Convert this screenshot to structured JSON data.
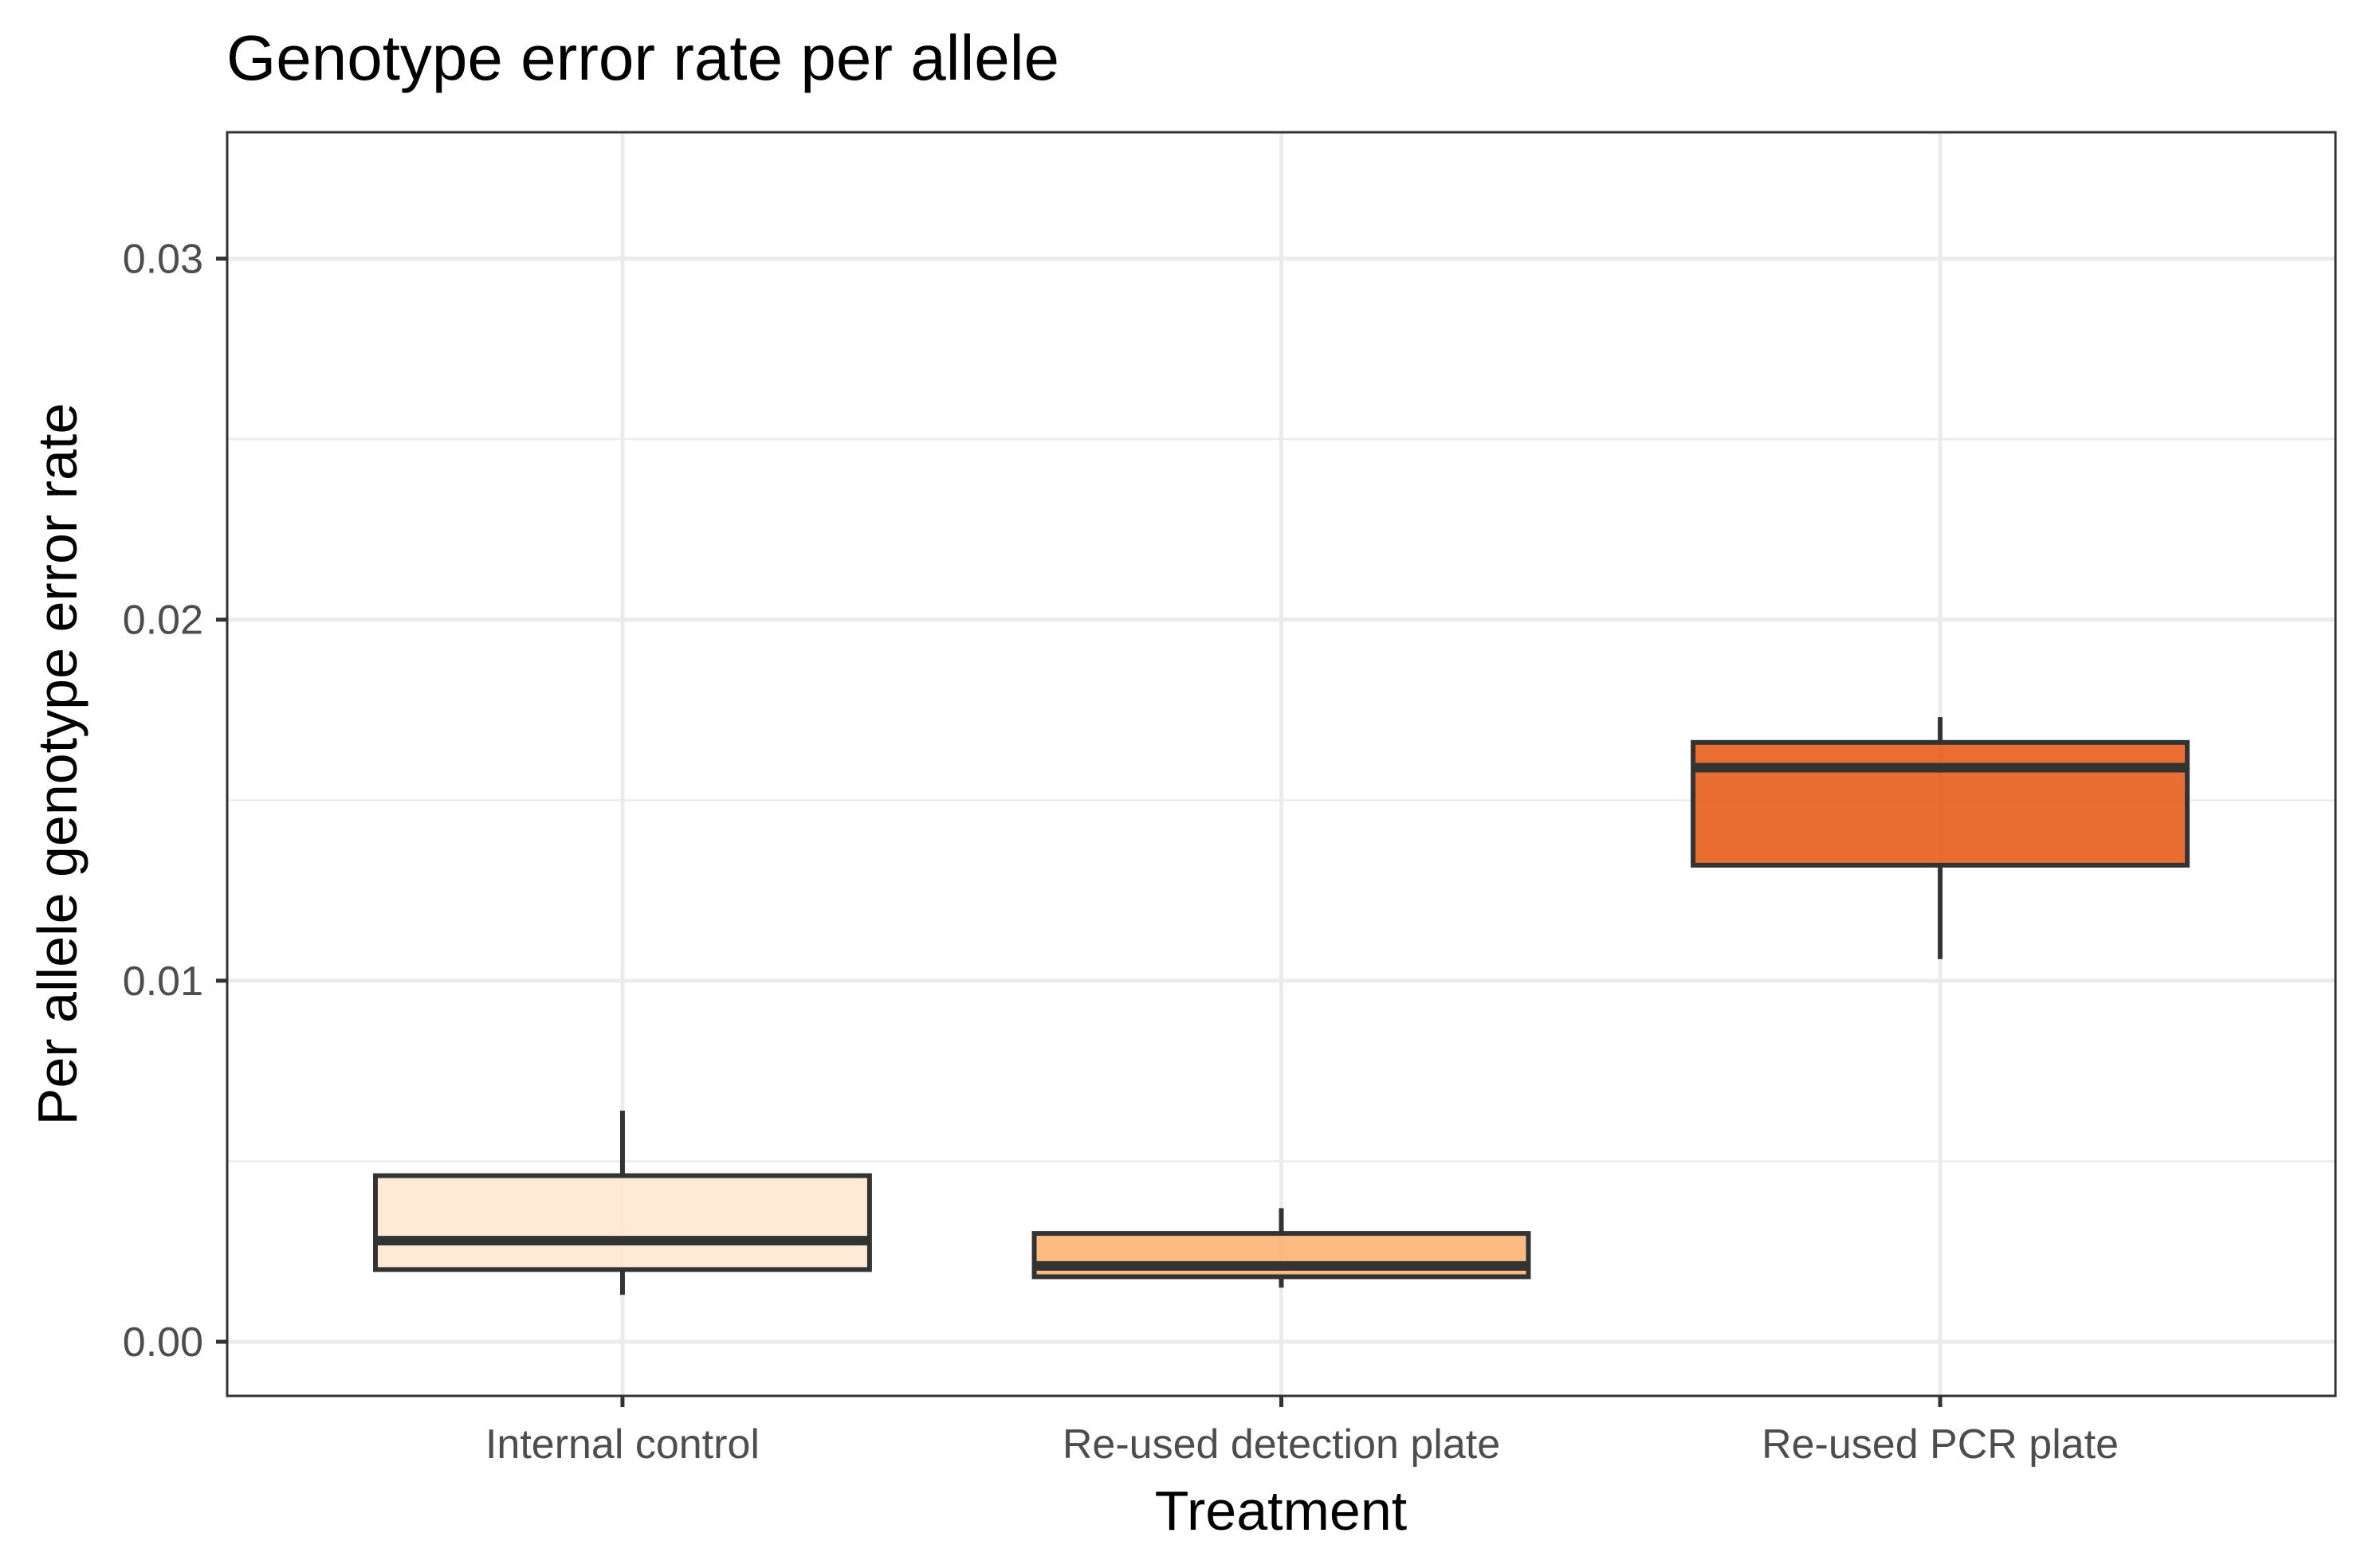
{
  "chart_data": {
    "type": "boxplot",
    "title": "Genotype error rate per allele",
    "xlabel": "Treatment",
    "ylabel": "Per allele genotype error rate",
    "ylim": [
      -0.0015,
      0.0335
    ],
    "yticks": [
      0.0,
      0.01,
      0.02,
      0.03
    ],
    "ytick_labels": [
      "0.00",
      "0.01",
      "0.02",
      "0.03"
    ],
    "grid": true,
    "legend": "none",
    "categories": [
      "Internal control",
      "Re-used detection plate",
      "Re-used PCR plate"
    ],
    "boxes": [
      {
        "category": "Internal control",
        "min": 0.0013,
        "q1": 0.002,
        "median": 0.0028,
        "q3": 0.0046,
        "max": 0.0064,
        "color": "#FEE6CE"
      },
      {
        "category": "Re-used detection plate",
        "min": 0.0015,
        "q1": 0.0018,
        "median": 0.0021,
        "q3": 0.003,
        "max": 0.0037,
        "color": "#FDAE6B"
      },
      {
        "category": "Re-used PCR plate",
        "min": 0.0106,
        "q1": 0.0132,
        "median": 0.0159,
        "q3": 0.0166,
        "max": 0.0173,
        "color": "#E6550D"
      }
    ]
  }
}
